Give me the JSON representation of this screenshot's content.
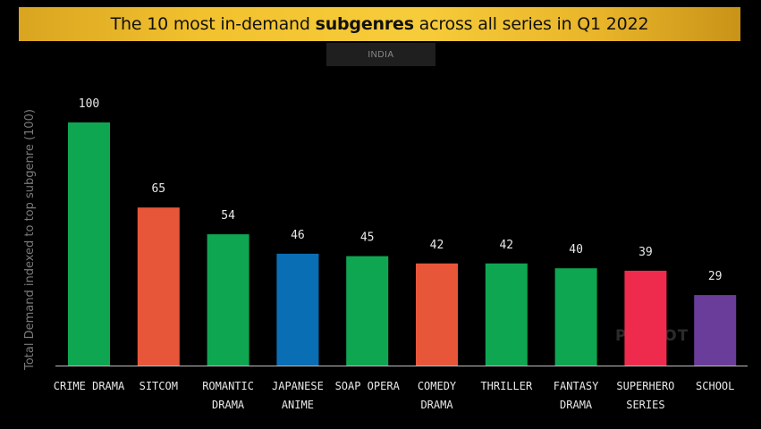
{
  "title": {
    "prefix": "The 10 most in-demand ",
    "bold": "subgenres",
    "suffix": " across all series in Q1 2022"
  },
  "region_tab": "INDIA",
  "watermark": "PARROT",
  "chart_data": {
    "type": "bar",
    "title": "The 10 most in-demand subgenres across all series in Q1 2022",
    "subtitle": "INDIA",
    "ylabel": "Total Demand indexed to top subgenre (100)",
    "xlabel": "",
    "ylim": [
      0,
      100
    ],
    "grid": false,
    "categories": [
      [
        "CRIME DRAMA"
      ],
      [
        "SITCOM"
      ],
      [
        "ROMANTIC",
        "DRAMA"
      ],
      [
        "JAPANESE",
        "ANIME"
      ],
      [
        "SOAP OPERA"
      ],
      [
        "COMEDY",
        "DRAMA"
      ],
      [
        "THRILLER"
      ],
      [
        "FANTASY",
        "DRAMA"
      ],
      [
        "SUPERHERO",
        "SERIES"
      ],
      [
        "SCHOOL"
      ]
    ],
    "values": [
      100,
      65,
      54,
      46,
      45,
      42,
      42,
      40,
      39,
      29
    ],
    "colors": [
      "#0fa651",
      "#e8563a",
      "#0fa651",
      "#0a6eb4",
      "#0fa651",
      "#e8563a",
      "#0fa651",
      "#0fa651",
      "#ee2b4c",
      "#6a3d9a"
    ]
  }
}
